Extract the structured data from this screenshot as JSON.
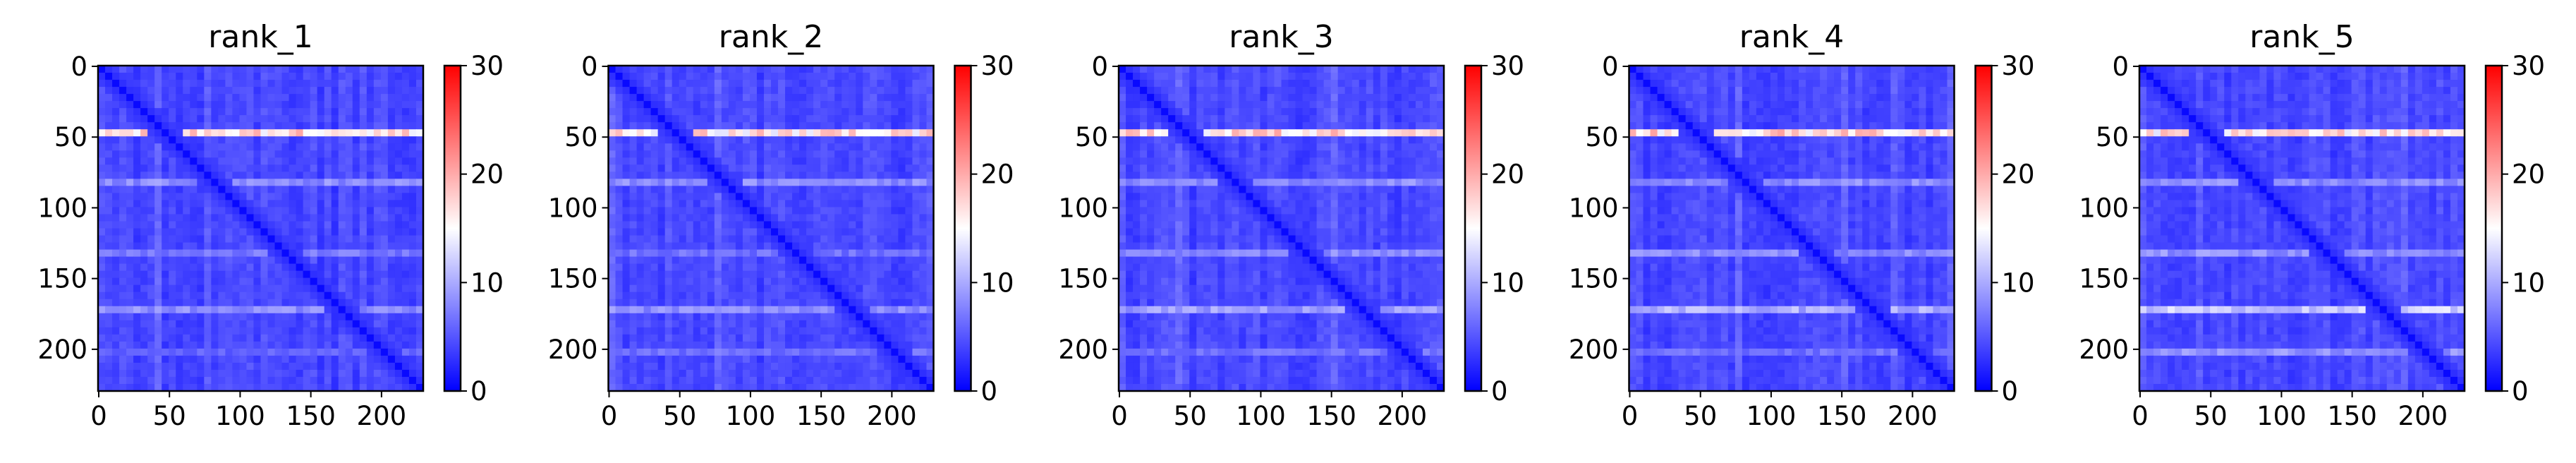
{
  "chart_data": {
    "type": "heatmap",
    "colormap": "bwr",
    "colors": {
      "low": "#0000ff",
      "mid": "#ffffff",
      "high": "#ff0000",
      "background": "#ffffff",
      "text": "#000000"
    },
    "size": 230,
    "clim": [
      0,
      30
    ],
    "axis_ticks": [
      0,
      50,
      100,
      150,
      200
    ],
    "colorbar_ticks": [
      0,
      10,
      20,
      30
    ],
    "grid": false,
    "panels": [
      {
        "title": "rank_1",
        "bright_rows": [
          {
            "row": 46,
            "level": 22
          },
          {
            "row": 134,
            "level": 15
          },
          {
            "row": 200,
            "level": 12
          },
          {
            "row": 172,
            "level": 9
          },
          {
            "row": 82,
            "level": 9
          }
        ]
      },
      {
        "title": "rank_2",
        "bright_rows": [
          {
            "row": 46,
            "level": 21
          },
          {
            "row": 134,
            "level": 14
          },
          {
            "row": 200,
            "level": 14
          },
          {
            "row": 172,
            "level": 9
          },
          {
            "row": 82,
            "level": 9
          }
        ]
      },
      {
        "title": "rank_3",
        "bright_rows": [
          {
            "row": 46,
            "level": 22
          },
          {
            "row": 134,
            "level": 17
          },
          {
            "row": 200,
            "level": 14
          },
          {
            "row": 172,
            "level": 10
          },
          {
            "row": 82,
            "level": 9
          }
        ]
      },
      {
        "title": "rank_4",
        "bright_rows": [
          {
            "row": 46,
            "level": 22
          },
          {
            "row": 134,
            "level": 17
          },
          {
            "row": 200,
            "level": 14
          },
          {
            "row": 172,
            "level": 11
          },
          {
            "row": 82,
            "level": 9
          }
        ]
      },
      {
        "title": "rank_5",
        "bright_rows": [
          {
            "row": 46,
            "level": 21
          },
          {
            "row": 134,
            "level": 18
          },
          {
            "row": 200,
            "level": 18
          },
          {
            "row": 172,
            "level": 13
          },
          {
            "row": 82,
            "level": 9
          }
        ]
      }
    ]
  }
}
